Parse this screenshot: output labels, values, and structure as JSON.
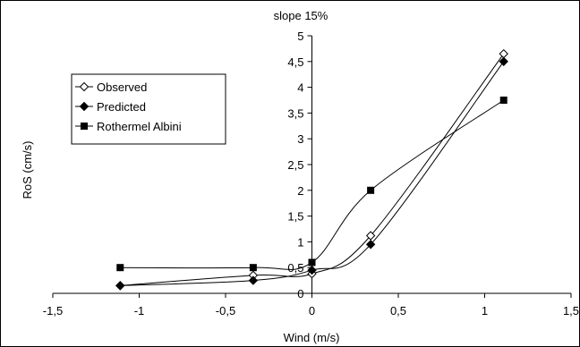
{
  "chart_data": {
    "type": "line",
    "title": "slope 15%",
    "xlabel": "Wind (m/s)",
    "ylabel": "RoS (cm/s)",
    "xlim": [
      -1.5,
      1.5
    ],
    "ylim": [
      0,
      5
    ],
    "x_ticks": [
      "-1,5",
      "-1",
      "-0,5",
      "0",
      "0,5",
      "1",
      "1,5"
    ],
    "x_tick_values": [
      -1.5,
      -1,
      -0.5,
      0,
      0.5,
      1,
      1.5
    ],
    "y_ticks": [
      "0",
      "0,5",
      "1",
      "1,5",
      "2",
      "2,5",
      "3",
      "3,5",
      "4",
      "4,5",
      "5"
    ],
    "y_tick_values": [
      0,
      0.5,
      1,
      1.5,
      2,
      2.5,
      3,
      3.5,
      4,
      4.5,
      5
    ],
    "grid": false,
    "legend_position": "left",
    "series": [
      {
        "name": "Observed",
        "marker": "diamond-open",
        "x": [
          -1.11,
          -0.34,
          0,
          0.34,
          1.11
        ],
        "y": [
          0.15,
          0.35,
          0.38,
          1.12,
          4.65
        ]
      },
      {
        "name": "Predicted",
        "marker": "diamond-filled",
        "x": [
          -1.11,
          -0.34,
          0,
          0.34,
          1.11
        ],
        "y": [
          0.15,
          0.25,
          0.45,
          0.95,
          4.5
        ]
      },
      {
        "name": "Rothermel Albini",
        "marker": "square-filled",
        "x": [
          -1.11,
          -0.34,
          0,
          0.34,
          1.11
        ],
        "y": [
          0.5,
          0.5,
          0.6,
          2.0,
          3.75
        ]
      }
    ]
  }
}
